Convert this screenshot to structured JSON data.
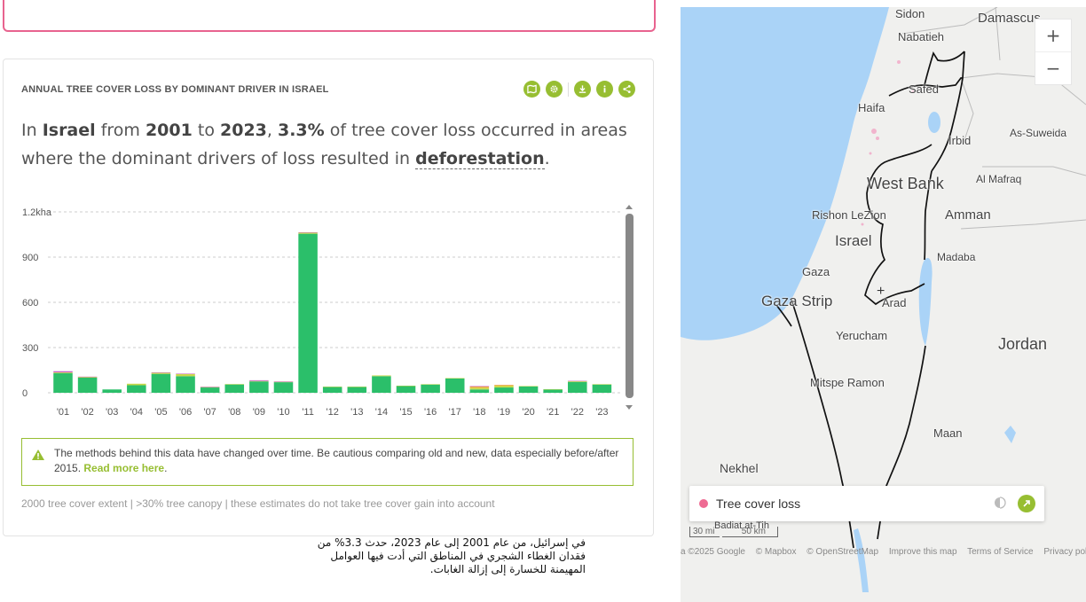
{
  "widget": {
    "title": "ANNUAL TREE COVER LOSS BY DOMINANT DRIVER IN ISRAEL",
    "tools": [
      "map-icon",
      "settings-icon",
      "download-icon",
      "info-icon",
      "share-icon"
    ],
    "sentence": {
      "p1": "In ",
      "country": "Israel",
      "p2": " from ",
      "start": "2001",
      "p3": " to ",
      "end": "2023",
      "p4": ", ",
      "percent": "3.3%",
      "p5": " of tree cover loss occurred in areas where the dominant drivers of loss resulted in ",
      "driver": "deforestation",
      "p6": "."
    },
    "notice": {
      "text": "The methods behind this data have changed over time. Be cautious comparing old and new, data especially before/after 2015. ",
      "link": "Read more here",
      "end": "."
    },
    "footnote": "2000 tree cover extent | >30% tree canopy | these estimates do not take tree cover gain into account"
  },
  "arabic_caption": "في إسرائيل، من عام 2001 إلى عام 2023، حدث 3.3% من فقدان الغطاء الشجري في المناطق التي أدت فيها العوامل المهيمنة للخسارة إلى إزالة الغابات.",
  "chart_data": {
    "type": "bar",
    "stacked": true,
    "categories": [
      "'01",
      "'02",
      "'03",
      "'04",
      "'05",
      "'06",
      "'07",
      "'08",
      "'09",
      "'10",
      "'11",
      "'12",
      "'13",
      "'14",
      "'15",
      "'16",
      "'17",
      "'18",
      "'19",
      "'20",
      "'21",
      "'22",
      "'23"
    ],
    "y_tick_labels": [
      "0",
      "300",
      "600",
      "900",
      "1.2kha"
    ],
    "ylim": [
      0,
      1200
    ],
    "grid": true,
    "series": [
      {
        "color": "#2bbf6a",
        "values": [
          130,
          100,
          22,
          50,
          125,
          110,
          35,
          55,
          75,
          70,
          1055,
          38,
          38,
          110,
          45,
          55,
          95,
          22,
          35,
          42,
          22,
          72,
          55
        ]
      },
      {
        "color": "#c9d84a",
        "values": [
          5,
          5,
          0,
          10,
          8,
          15,
          3,
          3,
          3,
          3,
          8,
          3,
          3,
          5,
          2,
          2,
          3,
          12,
          12,
          3,
          2,
          5,
          2
        ]
      },
      {
        "color": "#f0a040",
        "values": [
          0,
          0,
          0,
          0,
          0,
          0,
          0,
          0,
          0,
          0,
          0,
          0,
          0,
          0,
          0,
          0,
          0,
          8,
          5,
          0,
          0,
          0,
          0
        ]
      },
      {
        "color": "#c55ec5",
        "values": [
          8,
          2,
          0,
          0,
          2,
          2,
          2,
          0,
          5,
          2,
          2,
          0,
          0,
          0,
          0,
          0,
          0,
          2,
          0,
          0,
          0,
          2,
          0
        ]
      }
    ]
  },
  "map": {
    "zoom_in": "+",
    "zoom_out": "−",
    "labels": {
      "sidon": "Sidon",
      "damascus": "Damascus",
      "nabatieh": "Nabatieh",
      "safed": "Safed",
      "haifa": "Haifa",
      "irbid": "Irbid",
      "as_suweida": "As-Suweida",
      "west_bank": "West Bank",
      "al_mafraq": "Al Mafraq",
      "rishon": "Rishon LeZion",
      "amman": "Amman",
      "israel": "Israel",
      "madaba": "Madaba",
      "gaza": "Gaza",
      "gaza_strip": "Gaza Strip",
      "arad": "Arad",
      "yerucham": "Yerucham",
      "jordan": "Jordan",
      "mitspe": "Mitspe Ramon",
      "maan": "Maan",
      "nekhel": "Nekhel",
      "badiat": "Badiat at-Tih"
    },
    "legend_label": "Tree cover loss",
    "legend_color": "#ee6b93",
    "scale_a": "30 mi",
    "scale_b": "50 km",
    "attribution": [
      "a ©2025 Google",
      "© Mapbox",
      "© OpenStreetMap",
      "Improve this map",
      "Terms of Service",
      "Privacy poli"
    ]
  }
}
